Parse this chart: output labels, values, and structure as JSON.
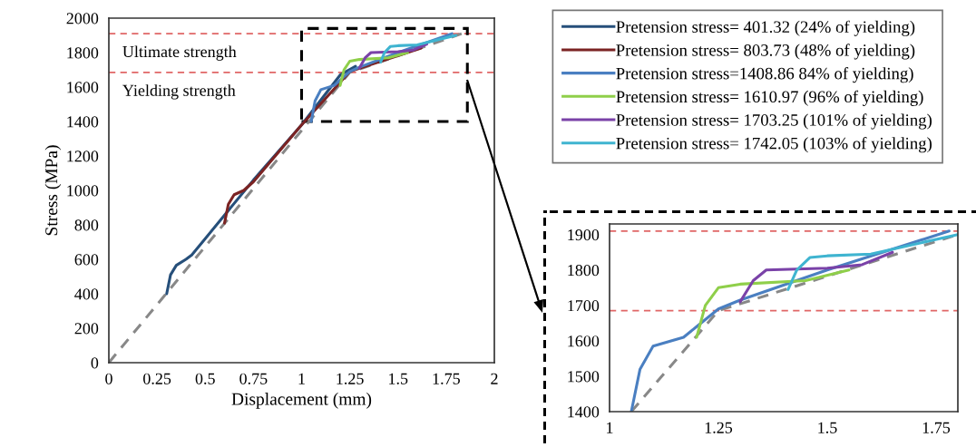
{
  "chart_data": [
    {
      "type": "line",
      "xlabel": "Displacement (mm)",
      "ylabel": "Stress (MPa)",
      "xlim": [
        0,
        2
      ],
      "ylim": [
        0,
        2000
      ],
      "xticks": [
        0,
        0.25,
        0.5,
        0.75,
        1,
        1.25,
        1.5,
        1.75,
        2
      ],
      "yticks": [
        0,
        200,
        400,
        600,
        800,
        1000,
        1200,
        1400,
        1600,
        1800,
        2000
      ],
      "grid": false,
      "legend": "right",
      "marker": "none",
      "ref_lines": [
        {
          "axis": "y",
          "value": 1910,
          "label": "Ultimate strength",
          "color": "#e06666",
          "line_style": "dashed"
        },
        {
          "axis": "y",
          "value": 1685,
          "label": "Yielding strength",
          "color": "#e06666",
          "line_style": "dashed"
        }
      ],
      "series": [
        {
          "color": "#888888",
          "line_style": "dashed",
          "x": [
            0,
            1.25,
            1.83
          ],
          "values": [
            0,
            1685,
            1910
          ]
        },
        {
          "name": "Pretension stress= 401.32 (24% of yielding)",
          "color": "#264f7a",
          "x": [
            0.3,
            0.32,
            0.35,
            0.4,
            0.43,
            0.5,
            0.75,
            1.0,
            1.2,
            1.28
          ],
          "values": [
            400,
            510,
            565,
            600,
            625,
            720,
            1060,
            1380,
            1670,
            1720
          ]
        },
        {
          "name": "Pretension stress= 803.73 (48% of yielding)",
          "color": "#7b2323",
          "x": [
            0.6,
            0.62,
            0.65,
            0.7,
            0.75,
            1.0,
            1.25,
            1.62
          ],
          "values": [
            810,
            920,
            975,
            1000,
            1050,
            1380,
            1690,
            1826
          ]
        },
        {
          "name": "Pretension stress=1408.86 84% of yielding)",
          "color": "#4a7fc1",
          "x": [
            1.05,
            1.07,
            1.1,
            1.17,
            1.2,
            1.25,
            1.3,
            1.5,
            1.78
          ],
          "values": [
            1400,
            1520,
            1585,
            1610,
            1640,
            1690,
            1715,
            1800,
            1910
          ]
        },
        {
          "name": "Pretension stress= 1610.97 (96% of yielding)",
          "color": "#8fcf4a",
          "x": [
            1.2,
            1.22,
            1.25,
            1.3,
            1.45,
            1.55
          ],
          "values": [
            1610,
            1700,
            1750,
            1760,
            1770,
            1800
          ]
        },
        {
          "name": "Pretension stress= 1703.25 (101% of yielding)",
          "color": "#7a42a8",
          "x": [
            1.3,
            1.33,
            1.36,
            1.5,
            1.58,
            1.65
          ],
          "values": [
            1710,
            1770,
            1800,
            1805,
            1815,
            1850
          ]
        },
        {
          "name": "Pretension stress= 1742.05 (103% of yielding)",
          "color": "#3fb4d0",
          "x": [
            1.41,
            1.43,
            1.46,
            1.5,
            1.6,
            1.8
          ],
          "values": [
            1745,
            1800,
            1835,
            1840,
            1845,
            1900
          ]
        }
      ]
    },
    {
      "type": "line",
      "xlim": [
        1,
        1.8
      ],
      "ylim": [
        1400,
        1930
      ],
      "xticks": [
        1,
        1.25,
        1.5,
        1.75
      ],
      "yticks": [
        1400,
        1500,
        1600,
        1700,
        1800,
        1900
      ],
      "grid": false,
      "legend": false,
      "marker": "none",
      "ref_lines": [
        {
          "axis": "y",
          "value": 1910,
          "color": "#e06666",
          "line_style": "dashed"
        },
        {
          "axis": "y",
          "value": 1685,
          "color": "#e06666",
          "line_style": "dashed"
        }
      ],
      "series": [
        {
          "color": "#888888",
          "line_style": "dashed",
          "x": [
            1.05,
            1.25,
            1.8
          ],
          "values": [
            1400,
            1685,
            1900
          ]
        },
        {
          "color": "#4a7fc1",
          "x": [
            1.05,
            1.07,
            1.1,
            1.17,
            1.2,
            1.25,
            1.3,
            1.5,
            1.78
          ],
          "values": [
            1400,
            1520,
            1585,
            1610,
            1640,
            1690,
            1715,
            1800,
            1910
          ]
        },
        {
          "color": "#8fcf4a",
          "x": [
            1.2,
            1.22,
            1.25,
            1.3,
            1.45,
            1.55
          ],
          "values": [
            1610,
            1700,
            1750,
            1760,
            1770,
            1800
          ]
        },
        {
          "color": "#7a42a8",
          "x": [
            1.3,
            1.33,
            1.36,
            1.5,
            1.58,
            1.65
          ],
          "values": [
            1710,
            1770,
            1800,
            1805,
            1815,
            1850
          ]
        },
        {
          "color": "#3fb4d0",
          "x": [
            1.41,
            1.43,
            1.46,
            1.5,
            1.6,
            1.8
          ],
          "values": [
            1745,
            1800,
            1835,
            1840,
            1845,
            1900
          ]
        }
      ]
    }
  ]
}
